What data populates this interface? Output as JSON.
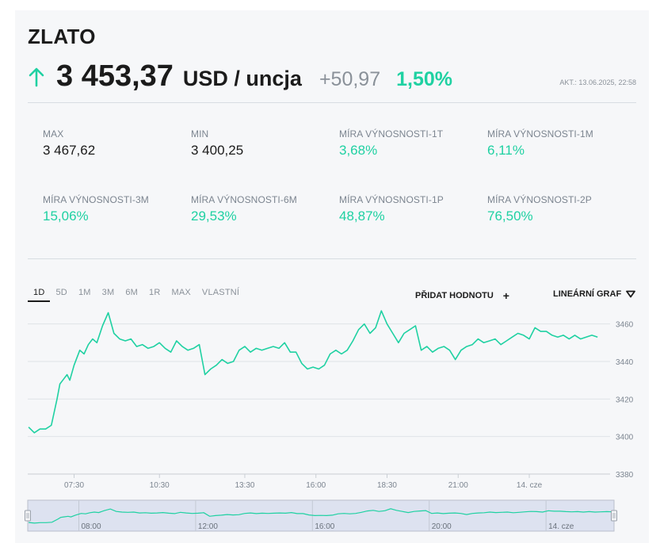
{
  "header": {
    "title": "ZLATO",
    "price": "3 453,37",
    "unit": "USD / uncja",
    "change": "+50,97",
    "change_pct": "1,50%",
    "updated": "AKT.: 13.06.2025, 22:58",
    "trend_icon": "arrow-up-icon",
    "accent_color": "#1fd1a2"
  },
  "stats": [
    {
      "label": "MAX",
      "value": "3 467,62",
      "tone": "dark"
    },
    {
      "label": "MIN",
      "value": "3 400,25",
      "tone": "dark"
    },
    {
      "label": "MÍRA VÝNOSNOSTI-1T",
      "value": "3,68%",
      "tone": "green"
    },
    {
      "label": "MÍRA VÝNOSNOSTI-1M",
      "value": "6,11%",
      "tone": "green"
    },
    {
      "label": "MÍRA VÝNOSNOSTI-3M",
      "value": "15,06%",
      "tone": "green"
    },
    {
      "label": "MÍRA VÝNOSNOSTI-6M",
      "value": "29,53%",
      "tone": "green"
    },
    {
      "label": "MÍRA VÝNOSNOSTI-1P",
      "value": "48,87%",
      "tone": "green"
    },
    {
      "label": "MÍRA VÝNOSNOSTI-2P",
      "value": "76,50%",
      "tone": "green"
    }
  ],
  "ranges": [
    {
      "label": "1D",
      "active": true
    },
    {
      "label": "5D",
      "active": false
    },
    {
      "label": "1M",
      "active": false
    },
    {
      "label": "3M",
      "active": false
    },
    {
      "label": "6M",
      "active": false
    },
    {
      "label": "1R",
      "active": false
    },
    {
      "label": "MAX",
      "active": false
    },
    {
      "label": "VLASTNÍ",
      "active": false
    }
  ],
  "toolbar": {
    "add_value_label": "PŘIDAT HODNOTU",
    "add_icon": "plus-icon",
    "chart_type_label": "LINEÁRNÍ GRAF",
    "chart_type_icon": "triangle-down-icon"
  },
  "chart_data": {
    "type": "line",
    "line_color": "#1fd1a2",
    "grid": true,
    "ylim": [
      3380,
      3470
    ],
    "xlim": [
      5.87,
      25.95
    ],
    "yticks": [
      3380,
      3400,
      3420,
      3440,
      3460
    ],
    "xticks": [
      {
        "label": "07:30",
        "x": 7.5
      },
      {
        "label": "10:30",
        "x": 10.5
      },
      {
        "label": "13:30",
        "x": 13.5
      },
      {
        "label": "16:00",
        "x": 16.0
      },
      {
        "label": "18:30",
        "x": 18.5
      },
      {
        "label": "21:00",
        "x": 21.0
      },
      {
        "label": "14. cze",
        "x": 23.5
      }
    ],
    "navigator_ticks": [
      {
        "label": "08:00",
        "x": 8.0
      },
      {
        "label": "12:00",
        "x": 12.0
      },
      {
        "label": "16:00",
        "x": 16.0
      },
      {
        "label": "20:00",
        "x": 20.0
      },
      {
        "label": "14. cze",
        "x": 24.0
      }
    ],
    "series": [
      {
        "x": [
          5.9,
          6.1,
          6.3,
          6.5,
          6.7,
          6.9,
          7.0,
          7.1,
          7.25,
          7.35,
          7.5,
          7.7,
          7.85,
          8.0,
          8.15,
          8.3,
          8.5,
          8.7,
          8.9,
          9.1,
          9.3,
          9.5,
          9.7,
          9.9,
          10.1,
          10.3,
          10.5,
          10.7,
          10.9,
          11.1,
          11.3,
          11.5,
          11.7,
          11.9,
          12.1,
          12.3,
          12.5,
          12.7,
          12.9,
          13.1,
          13.3,
          13.5,
          13.7,
          13.9,
          14.1,
          14.3,
          14.5,
          14.7,
          14.9,
          15.1,
          15.3,
          15.5,
          15.7,
          15.9,
          16.1,
          16.3,
          16.5,
          16.7,
          16.9,
          17.1,
          17.3,
          17.5,
          17.7,
          17.9,
          18.1,
          18.3,
          18.5,
          18.7,
          18.9,
          19.1,
          19.3,
          19.5,
          19.7,
          19.9,
          20.1,
          20.3,
          20.5,
          20.7,
          20.9,
          21.1,
          21.3,
          21.5,
          21.7,
          21.9,
          22.1,
          22.3,
          22.5,
          22.7,
          22.9,
          23.1,
          23.3,
          23.5,
          23.7,
          23.9,
          24.1,
          24.3,
          24.5,
          24.7,
          24.9,
          25.1,
          25.3,
          25.5,
          25.7,
          25.9
        ],
        "values": [
          3405,
          3402,
          3404,
          3404,
          3406,
          3420,
          3428,
          3430,
          3433,
          3430,
          3438,
          3446,
          3444,
          3449,
          3452,
          3450,
          3459,
          3466,
          3455,
          3452,
          3451,
          3452,
          3448,
          3449,
          3447,
          3448,
          3450,
          3447,
          3445,
          3451,
          3448,
          3446,
          3447,
          3449,
          3433,
          3436,
          3438,
          3441,
          3439,
          3440,
          3446,
          3448,
          3445,
          3447,
          3446,
          3447,
          3448,
          3447,
          3450,
          3445,
          3445,
          3439,
          3436,
          3437,
          3436,
          3438,
          3444,
          3446,
          3444,
          3446,
          3451,
          3457,
          3460,
          3455,
          3458,
          3467,
          3460,
          3455,
          3450,
          3455,
          3457,
          3459,
          3446,
          3448,
          3445,
          3447,
          3448,
          3446,
          3441,
          3446,
          3448,
          3449,
          3452,
          3450,
          3451,
          3452,
          3449,
          3451,
          3453,
          3455,
          3454,
          3452,
          3458,
          3456,
          3456,
          3454,
          3453,
          3454,
          3452,
          3454,
          3452,
          3453,
          3454,
          3453
        ]
      }
    ]
  }
}
